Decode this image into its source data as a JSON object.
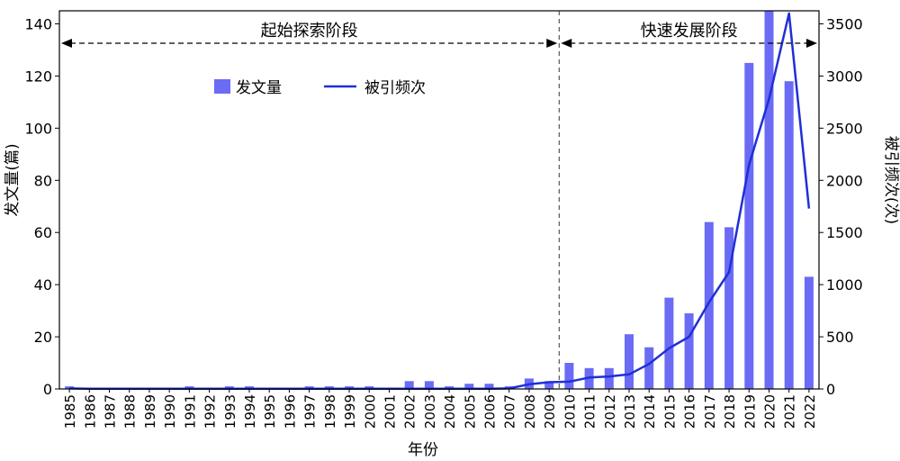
{
  "chart_data": {
    "type": "bar+line",
    "categories": [
      "1985",
      "1986",
      "1987",
      "1988",
      "1989",
      "1990",
      "1991",
      "1992",
      "1993",
      "1994",
      "1995",
      "1996",
      "1997",
      "1998",
      "1999",
      "2000",
      "2001",
      "2002",
      "2003",
      "2004",
      "2005",
      "2006",
      "2007",
      "2008",
      "2009",
      "2010",
      "2011",
      "2012",
      "2013",
      "2014",
      "2015",
      "2016",
      "2017",
      "2018",
      "2019",
      "2020",
      "2021",
      "2022"
    ],
    "series": [
      {
        "name": "发文量",
        "type": "bar",
        "axis": "left",
        "color": "#6b6bf5",
        "values": [
          1,
          0,
          0,
          0,
          0,
          0,
          1,
          0,
          1,
          1,
          0,
          0,
          1,
          1,
          1,
          1,
          0,
          3,
          3,
          1,
          2,
          2,
          1,
          4,
          3,
          10,
          8,
          8,
          21,
          16,
          35,
          29,
          64,
          62,
          125,
          150,
          118,
          43
        ]
      },
      {
        "name": "被引频次",
        "type": "line",
        "axis": "right",
        "color": "#1f2fd6",
        "values": [
          5,
          3,
          3,
          3,
          3,
          3,
          3,
          3,
          3,
          3,
          3,
          3,
          3,
          3,
          3,
          3,
          3,
          3,
          3,
          3,
          3,
          3,
          5,
          45,
          65,
          70,
          110,
          120,
          140,
          240,
          390,
          500,
          830,
          1120,
          2150,
          2780,
          3600,
          1730
        ]
      }
    ],
    "xlabel": "年份",
    "ylabel_left": "发文量(篇)",
    "ylabel_right": "被引频次(次)",
    "ylim_left": [
      0,
      145
    ],
    "yticks_left": [
      0,
      20,
      40,
      60,
      80,
      100,
      120,
      140
    ],
    "ylim_right": [
      0,
      3625
    ],
    "yticks_right": [
      0,
      500,
      1000,
      1500,
      2000,
      2500,
      3000,
      3500
    ],
    "stages": [
      {
        "label": "起始探索阶段",
        "from": "1985",
        "to": "2009"
      },
      {
        "label": "快速发展阶段",
        "from": "2009",
        "to": "2022"
      }
    ],
    "stage_divider_after": "2009",
    "legend_position": "top-left-inside",
    "grid": false
  }
}
